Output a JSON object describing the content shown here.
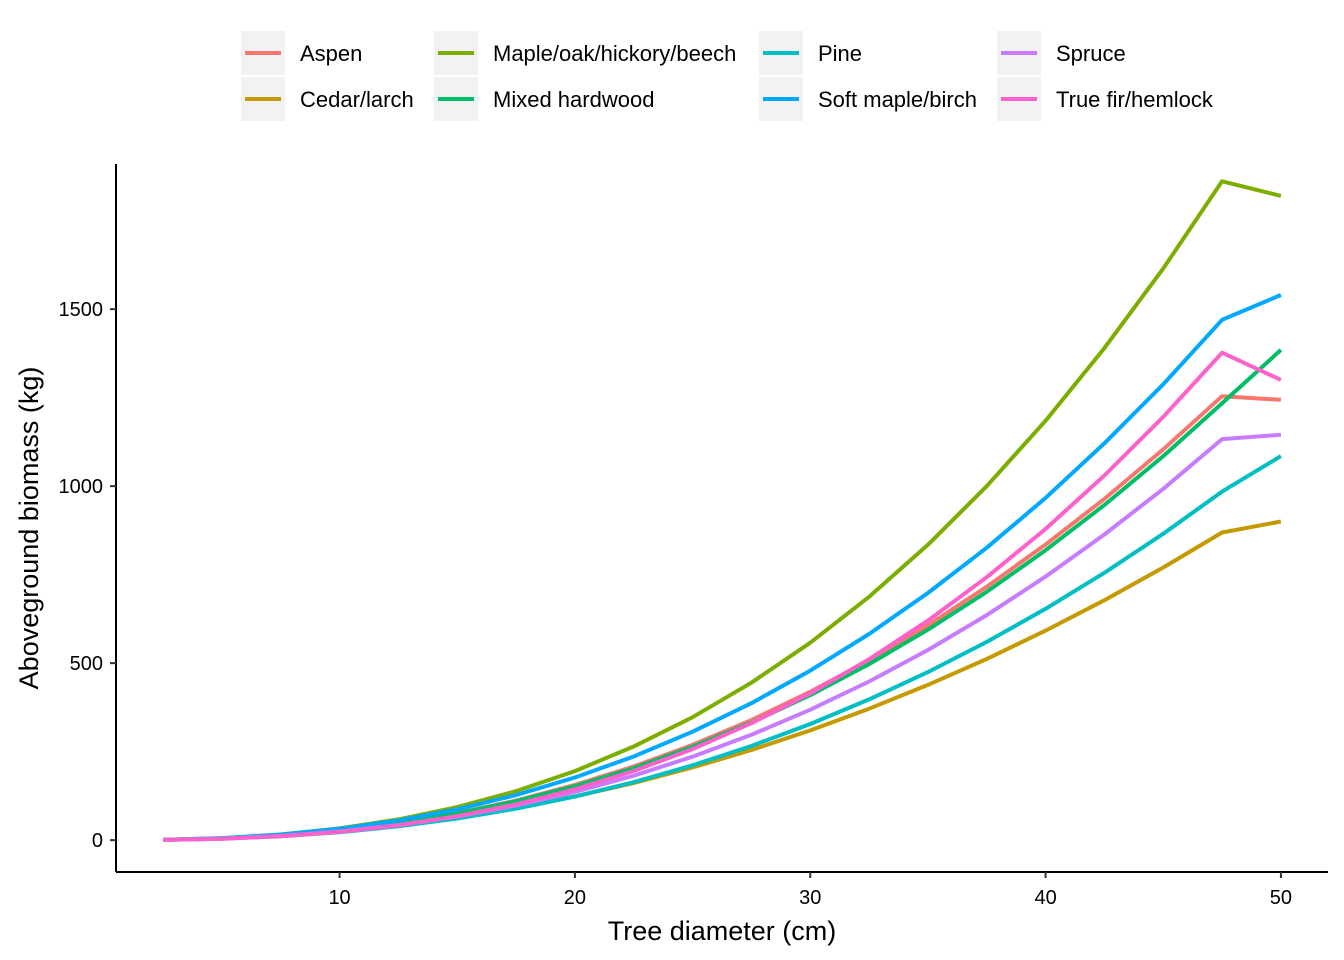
{
  "chart_data": {
    "type": "line",
    "xlabel": "Tree diameter (cm)",
    "ylabel": "Aboveground biomass (kg)",
    "xlim": [
      0.5,
      52
    ],
    "ylim": [
      -90,
      1910
    ],
    "x_ticks": [
      10,
      20,
      30,
      40,
      50
    ],
    "y_ticks": [
      0,
      500,
      1000,
      1500
    ],
    "grid": false,
    "legend_position": "top",
    "x": [
      2.5,
      5,
      7.5,
      10,
      12.5,
      15,
      17.5,
      20,
      22.5,
      25,
      27.5,
      30,
      32.5,
      35,
      37.5,
      40,
      42.5,
      45,
      47.5,
      50
    ],
    "series": [
      {
        "name": "Aspen",
        "color": "#F8766D",
        "values": [
          0.7,
          4.6,
          13.2,
          27.6,
          48.5,
          76.5,
          112,
          156,
          208,
          269,
          339,
          419,
          508,
          607,
          716,
          835,
          964,
          1104,
          1254,
          1244
        ]
      },
      {
        "name": "Cedar/larch",
        "color": "#C49A00",
        "values": [
          0.8,
          4.7,
          12.7,
          25,
          41.9,
          63.9,
          91,
          123.5,
          161.5,
          205.2,
          254.6,
          309.9,
          371.2,
          438.6,
          512.1,
          591.9,
          677.9,
          770.3,
          869.1,
          900
        ]
      },
      {
        "name": "Maple/oak/hickory/beech",
        "color": "#7CAE00",
        "values": [
          0.9,
          5.6,
          15.9,
          33.1,
          58.5,
          93.2,
          138.4,
          195.1,
          264.4,
          347.3,
          444.7,
          557.8,
          687.3,
          834.4,
          1000,
          1185,
          1390,
          1615,
          1861,
          1820
        ]
      },
      {
        "name": "Mixed hardwood",
        "color": "#00BE67",
        "values": [
          0.8,
          4.8,
          13.4,
          27.5,
          47.9,
          75.2,
          110,
          152.6,
          203.6,
          263.3,
          331.9,
          409.8,
          497.2,
          594.4,
          701.6,
          819,
          946.8,
          1085,
          1234,
          1385
        ]
      },
      {
        "name": "Pine",
        "color": "#00BFC4",
        "values": [
          0.7,
          4,
          11.1,
          22.5,
          39,
          61,
          88.9,
          123.1,
          163.8,
          211.4,
          266,
          328,
          397.6,
          474.8,
          560.1,
          653.5,
          755.3,
          865.6,
          984.7,
          1085
        ]
      },
      {
        "name": "Soft maple/birch",
        "color": "#00A9FF",
        "values": [
          0.9,
          5.7,
          15.7,
          32,
          55.5,
          87,
          127.3,
          176.9,
          236.4,
          306.2,
          386.9,
          478.8,
          582.4,
          698,
          826,
          966.9,
          1121,
          1288,
          1470,
          1540
        ]
      },
      {
        "name": "Spruce",
        "color": "#C77CFF",
        "values": [
          0.7,
          4.2,
          11.8,
          24.3,
          42.5,
          66.9,
          98,
          136.2,
          182,
          235.7,
          297.7,
          368.4,
          448.1,
          537.1,
          635.8,
          744.4,
          863.3,
          992.6,
          1133,
          1145
        ]
      },
      {
        "name": "True fir/hemlock",
        "color": "#FF61CC",
        "values": [
          0.6,
          3.7,
          10.8,
          23.2,
          41.8,
          67.5,
          101.1,
          143.5,
          195.3,
          257.3,
          330.2,
          414.6,
          511.1,
          620.3,
          742.8,
          879.2,
          1030,
          1196,
          1377,
          1300
        ]
      }
    ]
  }
}
